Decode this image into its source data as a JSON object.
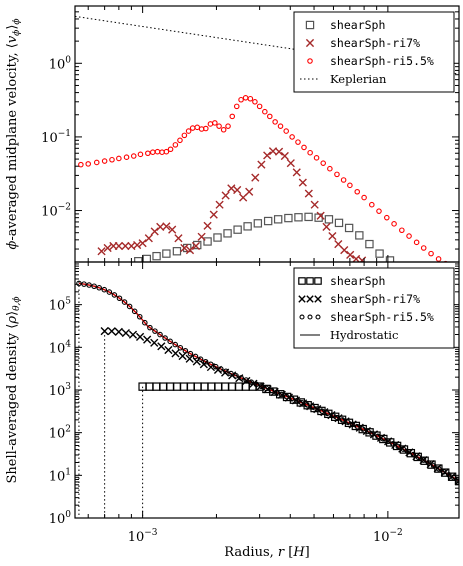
{
  "chart_data": [
    {
      "type": "scatter",
      "panel": "top",
      "ylabel": "ϕ-averaged midplane velocity, ⟨v_ϕ⟩_ϕ",
      "yscale": "log",
      "xscale": "log",
      "xlim": [
        0.00053,
        0.0195
      ],
      "ylim": [
        0.002,
        6
      ],
      "yticks": [
        {
          "value": 1,
          "label": "10^0"
        },
        {
          "value": 0.1,
          "label": "10^-1"
        },
        {
          "value": 0.01,
          "label": "10^-2"
        }
      ],
      "legend_position": "top-right",
      "series": [
        {
          "name": "shearSph",
          "marker": "square",
          "color": "#555555",
          "x": [
            0.00096,
            0.00104,
            0.00114,
            0.00125,
            0.00138,
            0.00152,
            0.00167,
            0.00184,
            0.00202,
            0.00222,
            0.00244,
            0.00268,
            0.00295,
            0.00325,
            0.00357,
            0.00393,
            0.00432,
            0.00475,
            0.00522,
            0.00575,
            0.00632,
            0.00695,
            0.00765,
            0.00841,
            0.00925,
            0.0102
          ],
          "y": [
            0.00205,
            0.0022,
            0.0024,
            0.0026,
            0.0028,
            0.0031,
            0.0034,
            0.0038,
            0.0043,
            0.0049,
            0.0055,
            0.0061,
            0.0067,
            0.0072,
            0.0076,
            0.0079,
            0.0081,
            0.0082,
            0.008,
            0.0076,
            0.0068,
            0.0058,
            0.0046,
            0.0035,
            0.0026,
            0.0021
          ]
        },
        {
          "name": "shearSph-ri7%",
          "marker": "x",
          "color": "#a52a2a",
          "x": [
            0.00068,
            0.00072,
            0.00076,
            0.0008,
            0.00085,
            0.0009,
            0.00095,
            0.001,
            0.00106,
            0.00112,
            0.00118,
            0.00125,
            0.00132,
            0.0014,
            0.00148,
            0.00156,
            0.00165,
            0.00174,
            0.00184,
            0.00195,
            0.00206,
            0.00218,
            0.0023,
            0.00243,
            0.00257,
            0.00272,
            0.00288,
            0.00305,
            0.00322,
            0.0034,
            0.0036,
            0.0038,
            0.00402,
            0.00425,
            0.0045,
            0.00476,
            0.00503,
            0.00532,
            0.00562,
            0.00594,
            0.00628,
            0.00664,
            0.00702,
            0.00742,
            0.00785
          ],
          "y": [
            0.0028,
            0.0031,
            0.0033,
            0.0033,
            0.0033,
            0.0033,
            0.0034,
            0.0036,
            0.0042,
            0.0052,
            0.006,
            0.0061,
            0.0055,
            0.0042,
            0.0031,
            0.0029,
            0.0033,
            0.0044,
            0.0062,
            0.0088,
            0.012,
            0.016,
            0.02,
            0.019,
            0.015,
            0.018,
            0.028,
            0.042,
            0.056,
            0.064,
            0.063,
            0.055,
            0.044,
            0.033,
            0.024,
            0.017,
            0.012,
            0.0085,
            0.006,
            0.0045,
            0.0035,
            0.0029,
            0.0025,
            0.0022,
            0.0021
          ]
        },
        {
          "name": "shearSph-ri5.5%",
          "marker": "circle",
          "color": "#ff0000",
          "x": [
            0.00056,
            0.0006,
            0.00065,
            0.0007,
            0.00075,
            0.0008,
            0.00086,
            0.00092,
            0.00098,
            0.00105,
            0.0011,
            0.00115,
            0.0012,
            0.00125,
            0.0013,
            0.00136,
            0.00142,
            0.00148,
            0.00154,
            0.0016,
            0.00167,
            0.00174,
            0.00181,
            0.00189,
            0.00197,
            0.00205,
            0.00214,
            0.00223,
            0.00232,
            0.00242,
            0.00252,
            0.00263,
            0.00275,
            0.00287,
            0.003,
            0.00315,
            0.0033,
            0.00347,
            0.00365,
            0.00385,
            0.00407,
            0.0043,
            0.00455,
            0.00482,
            0.00512,
            0.00545,
            0.0058,
            0.0062,
            0.0066,
            0.007,
            0.0075,
            0.008,
            0.0086,
            0.0092,
            0.0099,
            0.0106,
            0.0114,
            0.0122,
            0.0131,
            0.014,
            0.015,
            0.0161,
            0.0172,
            0.0184,
            0.0195
          ],
          "y": [
            0.042,
            0.043,
            0.045,
            0.047,
            0.049,
            0.051,
            0.053,
            0.055,
            0.058,
            0.06,
            0.062,
            0.063,
            0.062,
            0.063,
            0.068,
            0.078,
            0.09,
            0.105,
            0.12,
            0.132,
            0.135,
            0.128,
            0.13,
            0.15,
            0.155,
            0.14,
            0.125,
            0.14,
            0.19,
            0.26,
            0.32,
            0.34,
            0.33,
            0.3,
            0.26,
            0.22,
            0.19,
            0.16,
            0.14,
            0.12,
            0.1,
            0.085,
            0.072,
            0.061,
            0.052,
            0.044,
            0.037,
            0.031,
            0.026,
            0.022,
            0.018,
            0.015,
            0.012,
            0.0098,
            0.008,
            0.0066,
            0.0054,
            0.0045,
            0.0037,
            0.0031,
            0.0026,
            0.0022,
            0.0019,
            0.0017,
            0.0015
          ]
        },
        {
          "name": "Keplerian",
          "marker": "dotted-line",
          "color": "#000000",
          "x": [
            0.00053,
            0.0195
          ],
          "y": [
            4.34,
            0.716
          ]
        }
      ]
    },
    {
      "type": "scatter",
      "panel": "bottom",
      "xlabel": "Radius, r [H]",
      "ylabel": "Shell-averaged density ⟨ρ⟩_θ,ϕ",
      "yscale": "log",
      "xscale": "log",
      "xlim": [
        0.00053,
        0.0195
      ],
      "ylim": [
        1,
        1000000
      ],
      "xticks": [
        {
          "value": 0.001,
          "label": "10^-3"
        },
        {
          "value": 0.01,
          "label": "10^-2"
        }
      ],
      "yticks": [
        {
          "value": 1,
          "label": "10^0"
        },
        {
          "value": 10,
          "label": "10^1"
        },
        {
          "value": 100,
          "label": "10^2"
        },
        {
          "value": 1000,
          "label": "10^3"
        },
        {
          "value": 10000,
          "label": "10^4"
        },
        {
          "value": 100000,
          "label": "10^5"
        }
      ],
      "legend_position": "top-right",
      "series": [
        {
          "name": "shearSph",
          "marker": "square",
          "color": "#000000",
          "core_radius": 0.001,
          "peak_density": 1200
        },
        {
          "name": "shearSph-ri7%",
          "marker": "x",
          "color": "#000000",
          "core_radius": 0.0007,
          "peak_density": 24000
        },
        {
          "name": "shearSph-ri5.5%",
          "marker": "circle",
          "color": "#000000",
          "core_radius": 0.00055,
          "peak_density": 350000
        },
        {
          "name": "Hydrostatic",
          "marker": "line",
          "color": "#cc0000"
        }
      ]
    }
  ]
}
